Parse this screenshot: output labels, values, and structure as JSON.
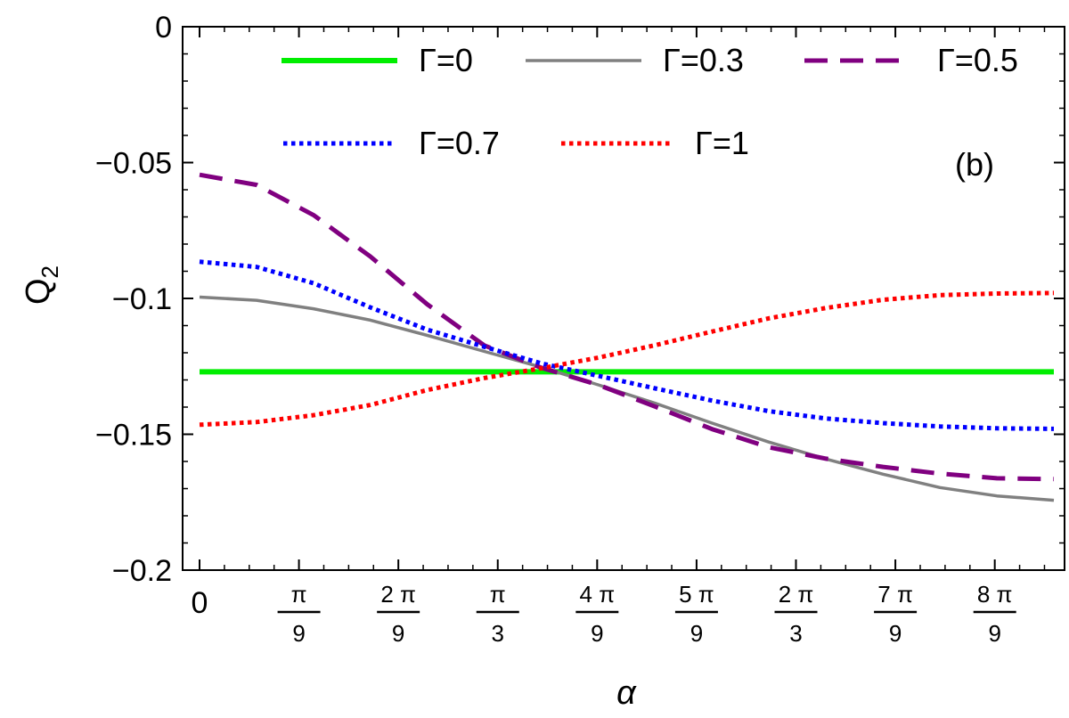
{
  "chart_data": {
    "type": "line",
    "xlabel": "α",
    "ylabel": "Q",
    "ylabel_sub": "2",
    "panel_label": "(b)",
    "xlim": [
      0,
      3.0
    ],
    "ylim": [
      -0.2,
      0.0
    ],
    "yticks": [
      {
        "value": 0,
        "label": "0"
      },
      {
        "value": -0.05,
        "label": "−0.05"
      },
      {
        "value": -0.1,
        "label": "−0.1"
      },
      {
        "value": -0.15,
        "label": "−0.15"
      },
      {
        "value": -0.2,
        "label": "−0.2"
      }
    ],
    "xticks": [
      {
        "value": 0,
        "num": "0",
        "den": ""
      },
      {
        "value": 0.349066,
        "num": "π",
        "den": "9"
      },
      {
        "value": 0.698132,
        "num": "2 π",
        "den": "9"
      },
      {
        "value": 1.047198,
        "num": "π",
        "den": "3"
      },
      {
        "value": 1.396263,
        "num": "4 π",
        "den": "9"
      },
      {
        "value": 1.745329,
        "num": "5 π",
        "den": "9"
      },
      {
        "value": 2.094395,
        "num": "2 π",
        "den": "3"
      },
      {
        "value": 2.443461,
        "num": "7 π",
        "den": "9"
      },
      {
        "value": 2.792527,
        "num": "8 π",
        "den": "9"
      }
    ],
    "grid": false,
    "legend_position": "top",
    "x": [
      0,
      0.2,
      0.4,
      0.6,
      0.8,
      1.0,
      1.2,
      1.4,
      1.6,
      1.8,
      2.0,
      2.2,
      2.4,
      2.6,
      2.8,
      3.0
    ],
    "series": [
      {
        "name": "Γ=0",
        "color": "#00ee00",
        "dash": "solid",
        "width": 6,
        "values": [
          -0.127,
          -0.127,
          -0.127,
          -0.127,
          -0.127,
          -0.127,
          -0.127,
          -0.127,
          -0.127,
          -0.127,
          -0.127,
          -0.127,
          -0.127,
          -0.127,
          -0.127,
          -0.127
        ]
      },
      {
        "name": "Γ=0.3",
        "color": "#808080",
        "dash": "solid",
        "width": 3.5,
        "values": [
          -0.0995,
          -0.1007,
          -0.1038,
          -0.108,
          -0.1136,
          -0.1195,
          -0.1253,
          -0.1318,
          -0.1386,
          -0.1459,
          -0.1529,
          -0.1591,
          -0.1647,
          -0.1696,
          -0.1727,
          -0.1743
        ]
      },
      {
        "name": "Γ=0.5",
        "color": "#800080",
        "dash": "dash",
        "width": 5,
        "values": [
          -0.0545,
          -0.0582,
          -0.0693,
          -0.0846,
          -0.1022,
          -0.1173,
          -0.1255,
          -0.1318,
          -0.1398,
          -0.1481,
          -0.1548,
          -0.159,
          -0.162,
          -0.1645,
          -0.1662,
          -0.1665
        ]
      },
      {
        "name": "Γ=0.7",
        "color": "#0000ff",
        "dash": "dot",
        "width": 5,
        "values": [
          -0.0865,
          -0.0884,
          -0.0944,
          -0.1033,
          -0.1115,
          -0.1178,
          -0.1239,
          -0.1285,
          -0.1331,
          -0.1376,
          -0.1415,
          -0.1442,
          -0.1459,
          -0.1471,
          -0.1478,
          -0.148
        ]
      },
      {
        "name": "Γ=1",
        "color": "#ff0000",
        "dash": "dot",
        "width": 5,
        "values": [
          -0.1465,
          -0.1455,
          -0.143,
          -0.1392,
          -0.1337,
          -0.1293,
          -0.1257,
          -0.1218,
          -0.1172,
          -0.1122,
          -0.1073,
          -0.1035,
          -0.1005,
          -0.0988,
          -0.0982,
          -0.098
        ]
      }
    ]
  }
}
